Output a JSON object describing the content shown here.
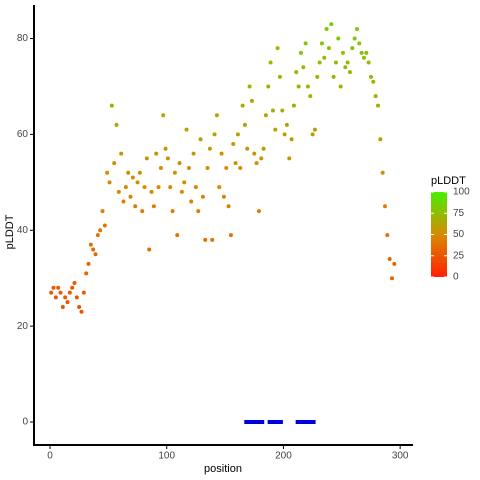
{
  "chart_data": {
    "type": "scatter",
    "xlabel": "position",
    "ylabel": "pLDDT",
    "xlim": [
      -13.7,
      311
    ],
    "ylim": [
      -4.8,
      87
    ],
    "xticks": [
      0,
      100,
      200,
      300
    ],
    "yticks": [
      0,
      20,
      40,
      60,
      80
    ],
    "colorbar": {
      "title": "pLDDT",
      "lim": [
        0,
        100
      ],
      "ticks": [
        0,
        25,
        50,
        75,
        100
      ],
      "colors": [
        "#ff2000",
        "#d88a00",
        "#48f000"
      ]
    },
    "series": [
      {
        "x": [
          1,
          3,
          5,
          7,
          9,
          11,
          13,
          15,
          17,
          19,
          21,
          23,
          25,
          27,
          29,
          31,
          33,
          35,
          37,
          39,
          41,
          43,
          45,
          47,
          49,
          51,
          53,
          55,
          57,
          59,
          61,
          63,
          65,
          67,
          69,
          71,
          73,
          75,
          77,
          79,
          81,
          83,
          85,
          87,
          89,
          91,
          93,
          95,
          97,
          99,
          101,
          103,
          105,
          107,
          109,
          111,
          113,
          115,
          117,
          119,
          121,
          123,
          125,
          127,
          129,
          131,
          133,
          135,
          137,
          139,
          141,
          143,
          145,
          147,
          149,
          151,
          153,
          155,
          157,
          159,
          161,
          163,
          165,
          167,
          169,
          171,
          173,
          175,
          177,
          179,
          181,
          183,
          185,
          187,
          189,
          191,
          193,
          195,
          197,
          199,
          201,
          203,
          205,
          207,
          209,
          211,
          213,
          215,
          217,
          219,
          221,
          223,
          225,
          227,
          229,
          231,
          233,
          235,
          237,
          239,
          241,
          243,
          245,
          247,
          249,
          251,
          253,
          255,
          257,
          259,
          261,
          263,
          265,
          267,
          269,
          271,
          273,
          275,
          277,
          279,
          281,
          283,
          285,
          287,
          289,
          291,
          293,
          295
        ],
        "values": [
          27,
          28,
          26,
          28,
          27,
          24,
          26,
          25,
          27,
          28,
          29,
          26,
          24,
          23,
          27,
          31,
          33,
          37,
          36,
          35,
          39,
          40,
          44,
          41,
          52,
          50,
          66,
          54,
          62,
          48,
          56,
          46,
          49,
          52,
          47,
          51,
          45,
          50,
          52,
          44,
          49,
          55,
          36,
          48,
          45,
          56,
          49,
          53,
          64,
          57,
          55,
          49,
          44,
          52,
          39,
          54,
          48,
          50,
          61,
          53,
          46,
          56,
          49,
          44,
          59,
          47,
          38,
          53,
          57,
          38,
          60,
          64,
          49,
          56,
          47,
          53,
          45,
          39,
          58,
          54,
          60,
          53,
          66,
          62,
          57,
          70,
          67,
          56,
          54,
          44,
          55,
          57,
          64,
          70,
          75,
          65,
          61,
          78,
          72,
          65,
          60,
          62,
          55,
          59,
          66,
          73,
          70,
          77,
          74,
          79,
          70,
          68,
          60,
          61,
          72,
          75,
          79,
          76,
          82,
          78,
          83,
          72,
          75,
          80,
          70,
          77,
          74,
          75,
          73,
          78,
          80,
          82,
          79,
          77,
          76,
          77,
          75,
          72,
          71,
          68,
          66,
          59,
          52,
          45,
          39,
          34,
          30,
          33
        ]
      },
      {
        "color": "#0000dd",
        "x": [
          168,
          170,
          172,
          174,
          176,
          178,
          180,
          182,
          188,
          190,
          192,
          194,
          196,
          198,
          212,
          214,
          216,
          218,
          220,
          222,
          224,
          226
        ],
        "values": [
          0,
          0,
          0,
          0,
          0,
          0,
          0,
          0,
          0,
          0,
          0,
          0,
          0,
          0,
          0,
          0,
          0,
          0,
          0,
          0,
          0,
          0
        ]
      }
    ]
  }
}
